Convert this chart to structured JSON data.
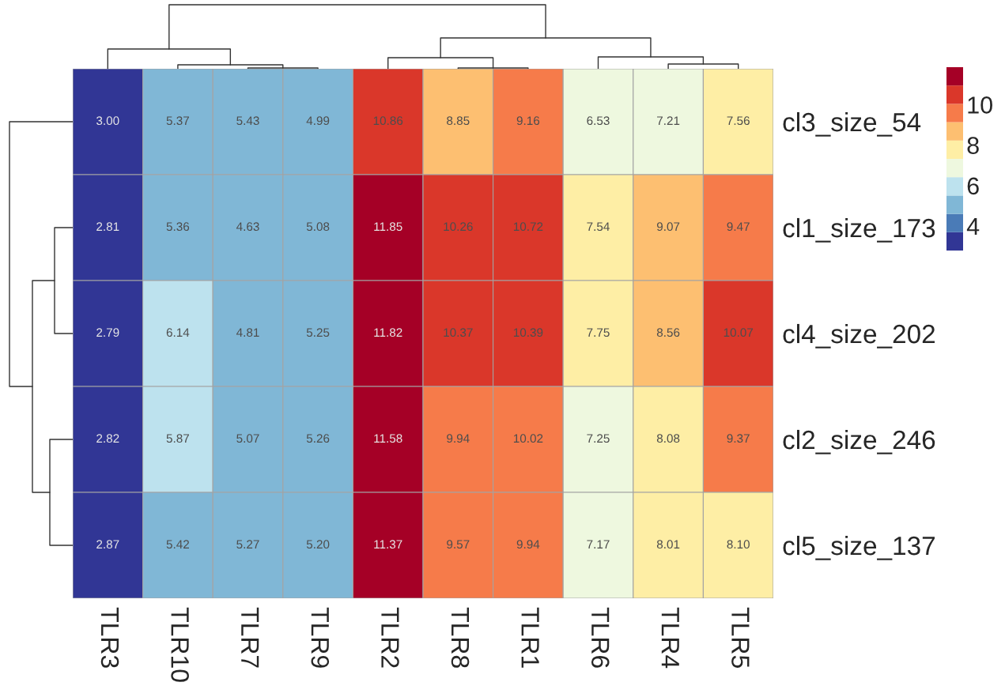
{
  "chart_data": {
    "type": "heatmap",
    "categories": [
      "TLR3",
      "TLR10",
      "TLR7",
      "TLR9",
      "TLR2",
      "TLR8",
      "TLR1",
      "TLR6",
      "TLR4",
      "TLR5"
    ],
    "y_categories": [
      "cl3_size_54",
      "cl1_size_173",
      "cl4_size_202",
      "cl2_size_246",
      "cl5_size_137"
    ],
    "cells": [
      [
        3.0,
        5.37,
        5.43,
        4.99,
        10.86,
        8.85,
        9.16,
        6.53,
        7.21,
        7.56
      ],
      [
        2.81,
        5.36,
        4.63,
        5.08,
        11.85,
        10.26,
        10.72,
        7.54,
        9.07,
        9.47
      ],
      [
        2.79,
        6.14,
        4.81,
        5.25,
        11.82,
        10.37,
        10.39,
        7.75,
        8.56,
        10.07
      ],
      [
        2.82,
        5.87,
        5.07,
        5.26,
        11.58,
        9.94,
        10.02,
        7.25,
        8.08,
        9.37
      ],
      [
        2.87,
        5.42,
        5.27,
        5.2,
        11.37,
        9.57,
        9.94,
        7.17,
        8.01,
        8.1
      ]
    ],
    "cell_labels": [
      [
        "3.00",
        "5.37",
        "5.43",
        "4.99",
        "10.86",
        "8.85",
        "9.16",
        "6.53",
        "7.21",
        "7.56"
      ],
      [
        "2.81",
        "5.36",
        "4.63",
        "5.08",
        "11.85",
        "10.26",
        "10.72",
        "7.54",
        "9.07",
        "9.47"
      ],
      [
        "2.79",
        "6.14",
        "4.81",
        "5.25",
        "11.82",
        "10.37",
        "10.39",
        "7.75",
        "8.56",
        "10.07"
      ],
      [
        "2.82",
        "5.87",
        "5.07",
        "5.26",
        "11.58",
        "9.94",
        "10.02",
        "7.25",
        "8.08",
        "9.37"
      ],
      [
        "2.87",
        "5.42",
        "5.27",
        "5.20",
        "11.37",
        "9.57",
        "9.94",
        "7.17",
        "8.01",
        "8.10"
      ]
    ],
    "clim": [
      2.79,
      11.85
    ],
    "cticks": [
      4,
      6,
      8,
      10
    ]
  }
}
